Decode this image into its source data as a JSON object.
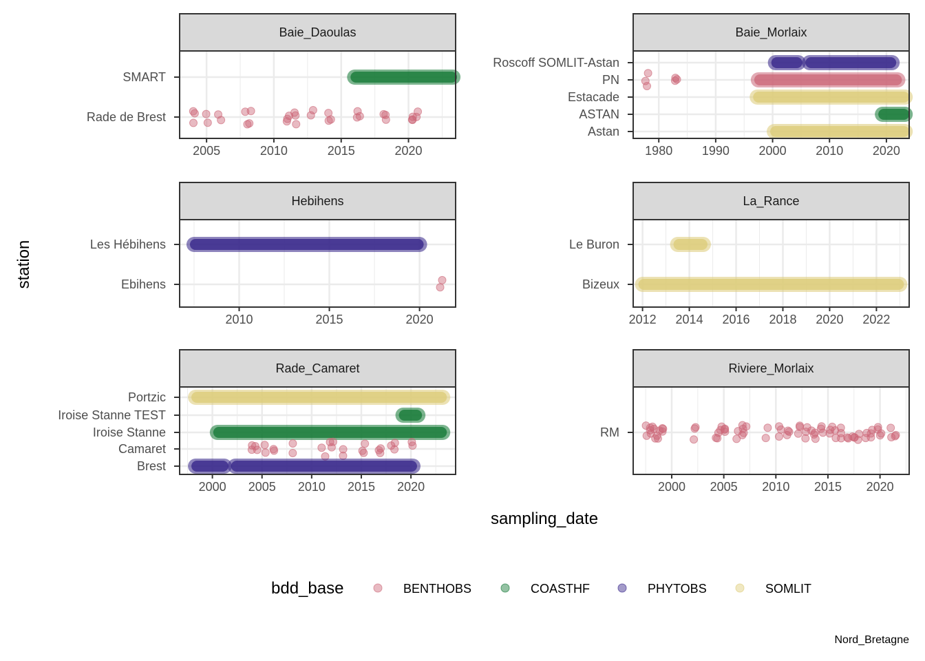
{
  "chart_data": {
    "type": "scatter",
    "xlabel": "sampling_date",
    "ylabel": "station",
    "caption": "Nord_Bretagne",
    "legend": {
      "title": "bdd_base",
      "position": "bottom",
      "entries": [
        {
          "name": "BENTHOBS",
          "color": "#CC6677"
        },
        {
          "name": "COASTHF",
          "color": "#117733"
        },
        {
          "name": "PHYTOBS",
          "color": "#332288"
        },
        {
          "name": "SOMLIT",
          "color": "#DDCC77"
        }
      ]
    },
    "grid": true,
    "panels": [
      {
        "title": "Baie_Daoulas",
        "xlim": [
          2003,
          2023.5
        ],
        "xticks": [
          2005,
          2010,
          2015,
          2020
        ],
        "stations": [
          "SMART",
          "Rade de Brest"
        ],
        "series": [
          {
            "name": "COASTHF",
            "station": "SMART",
            "ranges": [
              [
                2016,
                2023.3
              ]
            ]
          },
          {
            "name": "BENTHOBS",
            "station": "Rade de Brest",
            "points": [
              2004,
              2005,
              2006,
              2008,
              2008.3,
              2011,
              2011.6,
              2012.8,
              2014.2,
              2016.3,
              2018.2,
              2020.2,
              2020.6
            ]
          }
        ]
      },
      {
        "title": "Baie_Morlaix",
        "xlim": [
          1975.5,
          2024
        ],
        "xticks": [
          1980,
          1990,
          2000,
          2010,
          2020
        ],
        "stations": [
          "Roscoff SOMLIT-Astan",
          "PN",
          "Estacade",
          "ASTAN",
          "Astan"
        ],
        "series": [
          {
            "name": "PHYTOBS",
            "station": "Roscoff SOMLIT-Astan",
            "ranges": [
              [
                2000.5,
                2004.5
              ],
              [
                2006.5,
                2021
              ]
            ]
          },
          {
            "name": "BENTHOBS",
            "station": "PN",
            "points": [
              1978,
              1983
            ],
            "ranges": [
              [
                1997.5,
                2022
              ]
            ]
          },
          {
            "name": "SOMLIT",
            "station": "Estacade",
            "ranges": [
              [
                1997.3,
                2023.3
              ]
            ]
          },
          {
            "name": "COASTHF",
            "station": "ASTAN",
            "ranges": [
              [
                2019.3,
                2023.3
              ]
            ]
          },
          {
            "name": "SOMLIT",
            "station": "Astan",
            "ranges": [
              [
                2000.3,
                2023.3
              ]
            ]
          }
        ]
      },
      {
        "title": "Hebihens",
        "xlim": [
          2006.7,
          2022
        ],
        "xticks": [
          2010,
          2015,
          2020
        ],
        "stations": [
          "Les Hébihens",
          "Ebihens"
        ],
        "series": [
          {
            "name": "PHYTOBS",
            "station": "Les Hébihens",
            "ranges": [
              [
                2007.5,
                2020
              ]
            ]
          },
          {
            "name": "BENTHOBS",
            "station": "Ebihens",
            "points": [
              2021.2
            ]
          }
        ]
      },
      {
        "title": "La_Rance",
        "xlim": [
          2011.6,
          2023.4
        ],
        "xticks": [
          2012,
          2014,
          2016,
          2018,
          2020,
          2022
        ],
        "stations": [
          "Le Buron",
          "Bizeux"
        ],
        "series": [
          {
            "name": "SOMLIT",
            "station": "Le Buron",
            "ranges": [
              [
                2013.5,
                2014.6
              ]
            ]
          },
          {
            "name": "SOMLIT",
            "station": "Bizeux",
            "ranges": [
              [
                2012,
                2023
              ]
            ]
          }
        ]
      },
      {
        "title": "Rade_Camaret",
        "xlim": [
          1996.7,
          2024.5
        ],
        "xticks": [
          2000,
          2005,
          2010,
          2015,
          2020
        ],
        "stations": [
          "Portzic",
          "Iroise Stanne TEST",
          "Iroise Stanne",
          "Camaret",
          "Brest"
        ],
        "series": [
          {
            "name": "SOMLIT",
            "station": "Portzic",
            "ranges": [
              [
                1998.3,
                2023.2
              ]
            ]
          },
          {
            "name": "COASTHF",
            "station": "Iroise Stanne TEST",
            "ranges": [
              [
                2019.2,
                2020.7
              ]
            ]
          },
          {
            "name": "COASTHF",
            "station": "Iroise Stanne",
            "ranges": [
              [
                2000.5,
                2023.2
              ]
            ]
          },
          {
            "name": "BENTHOBS",
            "station": "Camaret",
            "points": [
              2003.8,
              2004.5,
              2005.2,
              2006.3,
              2008.3,
              2011.2,
              2012,
              2013.3,
              2015.2,
              2016.8,
              2018.2,
              2020.2
            ]
          },
          {
            "name": "PHYTOBS",
            "station": "Brest",
            "ranges": [
              [
                1998.3,
                2001.2
              ],
              [
                2002.3,
                2020.2
              ]
            ]
          }
        ]
      },
      {
        "title": "Riviere_Morlaix",
        "xlim": [
          1996.3,
          2022.8
        ],
        "xticks": [
          2000,
          2005,
          2010,
          2015,
          2020
        ],
        "stations": [
          "RM"
        ],
        "series": [
          {
            "name": "BENTHOBS",
            "station": "RM",
            "points": [
              1997.4,
              1997.8,
              1998.2,
              1998.6,
              1999,
              1999.3,
              2002.2,
              2004.3,
              2004.6,
              2005,
              2006.2,
              2006.6,
              2007,
              2009.2,
              2010.4,
              2011.2,
              2012.2,
              2012.9,
              2013.5,
              2013.9,
              2014.5,
              2015.3,
              2015.8,
              2016.2,
              2016.8,
              2017.4,
              2018,
              2018.6,
              2019.3,
              2019.8,
              2020.2,
              2021.2,
              2021.6
            ]
          }
        ]
      }
    ]
  }
}
